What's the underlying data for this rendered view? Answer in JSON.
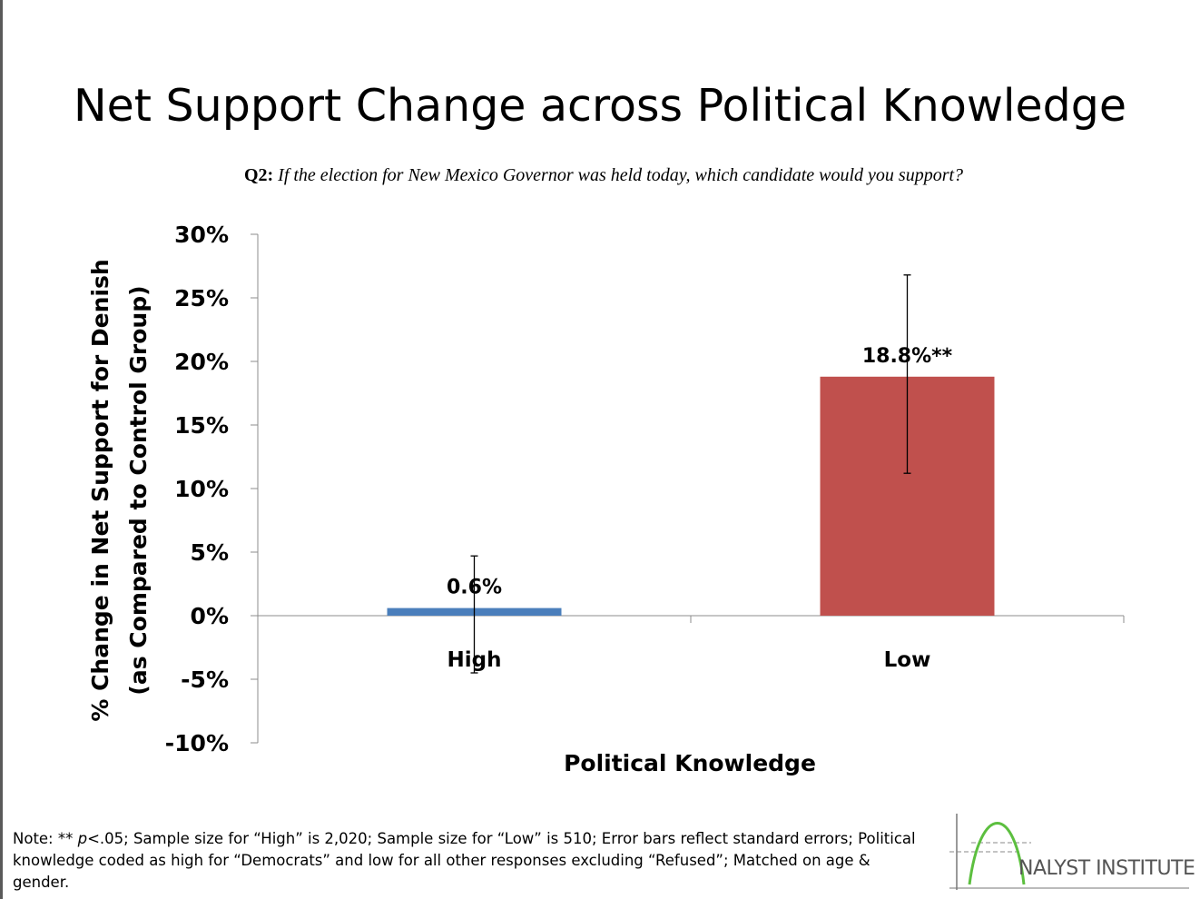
{
  "title": "Net Support Change across Political Knowledge",
  "subtitle": {
    "prefix": "Q2:",
    "question": "If the election for New Mexico Governor was held today, which candidate would you support?"
  },
  "chart_data": {
    "type": "bar",
    "categories": [
      "High",
      "Low"
    ],
    "series": [
      {
        "values": [
          0.6,
          18.8
        ],
        "colors": [
          "#4a7ebb",
          "#c0504d"
        ],
        "data_labels": [
          "0.6%",
          "18.8%**"
        ],
        "error_low": [
          -4.5,
          11.2
        ],
        "error_high": [
          4.7,
          26.8
        ]
      }
    ],
    "ylim": [
      -10,
      30
    ],
    "yticks": [
      30,
      25,
      20,
      15,
      10,
      5,
      0,
      -5,
      -10
    ],
    "ytick_labels": [
      "30%",
      "25%",
      "20%",
      "15%",
      "10%",
      "5%",
      "0%",
      "-5%",
      "-10%"
    ],
    "xlabel": "Political Knowledge",
    "ylabel_line1": "% Change in Net Support for Denish",
    "ylabel_line2": "(as Compared to Control Group)",
    "grid": false
  },
  "note": {
    "prefix": "Note: ** ",
    "p": "p",
    "rest": "<.05; Sample size for “High” is 2,020; Sample size for “Low” is 510; Error bars reflect standard errors; Political knowledge coded as high for “Democrats” and low for all other responses excluding “Refused”; Matched on age & gender."
  },
  "logo": {
    "text": "NALYST INSTITUTE"
  }
}
